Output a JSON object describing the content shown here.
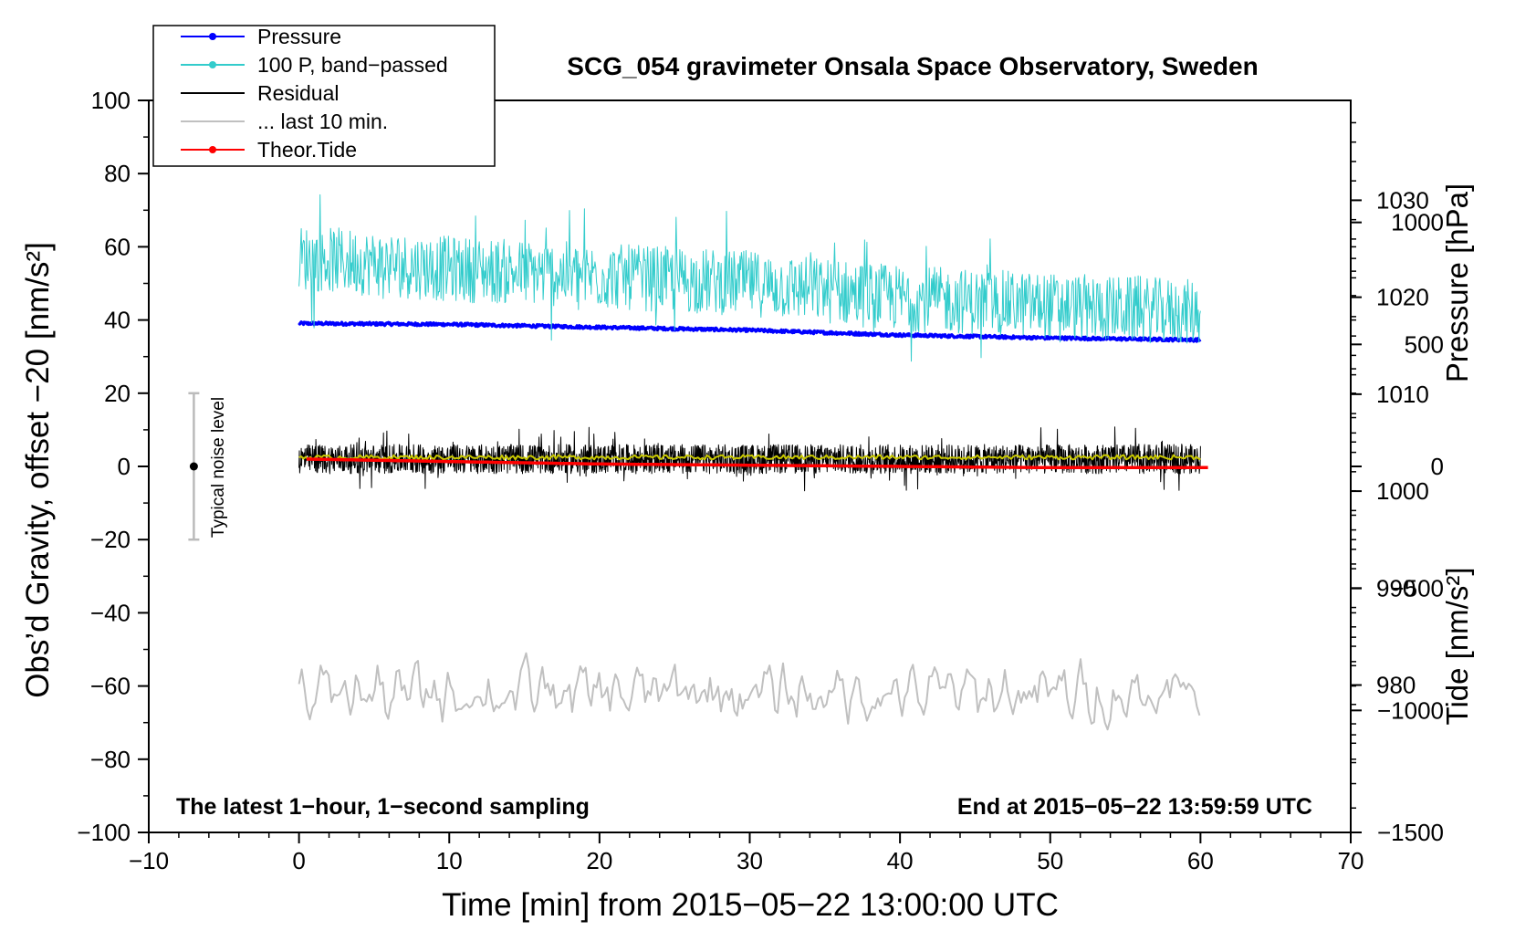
{
  "chart_data": {
    "type": "line",
    "title": "SCG_054 gravimeter Onsala Space Observatory, Sweden",
    "xlabel": "Time [min] from 2015−05−22 13:00:00 UTC",
    "ylabel_left": "Obs’d Gravity, offset −20 [nm/s²]",
    "ylabel_right_top": "Pressure [hPa]",
    "ylabel_right_bottom": "Tide [nm/s²]",
    "xlim": [
      -10,
      70
    ],
    "ylim": [
      -100,
      100
    ],
    "x_ticks": [
      "−10",
      "0",
      "10",
      "20",
      "30",
      "40",
      "50",
      "60",
      "70"
    ],
    "y_ticks": [
      "100",
      "80",
      "60",
      "40",
      "20",
      "0",
      "−20",
      "−40",
      "−60",
      "−80",
      "−100"
    ],
    "pressure_axis": {
      "range_hPa": [
        964.8,
        1040.3
      ],
      "ticks": [
        "1030",
        "1020",
        "1010",
        "1000",
        "990",
        "980"
      ]
    },
    "tide_axis": {
      "range": [
        -1500,
        1500
      ],
      "ticks": [
        "1000",
        "500",
        "0",
        "−500",
        "−1000",
        "−1500"
      ]
    },
    "annotation_left": "The latest 1−hour, 1−second sampling",
    "annotation_right": "End at 2015−05−22 13:59:59 UTC",
    "noise_bar": {
      "label": "Typical noise level",
      "x": -7,
      "center": 0,
      "low": -20,
      "high": 20
    },
    "legend": [
      {
        "label": "Pressure",
        "color": "#0000ff",
        "marker": true
      },
      {
        "label": "100 P, band−passed",
        "color": "#33cccc",
        "marker": true
      },
      {
        "label": "Residual",
        "color": "#000000",
        "marker": false
      },
      {
        "label": "... last 10 min.",
        "color": "#c0c0c0",
        "marker": false
      },
      {
        "label": "Theor.Tide",
        "color": "#ff0000",
        "marker": true
      }
    ],
    "series": [
      {
        "name": "Pressure",
        "axis": "pressure_hPa",
        "color": "#0000ff",
        "x": [
          0,
          10,
          20,
          30,
          40,
          50,
          60
        ],
        "values": [
          1017.3,
          1017.2,
          1016.9,
          1016.6,
          1016.1,
          1015.8,
          1015.6
        ]
      },
      {
        "name": "100 P, band-passed",
        "axis": "left",
        "color": "#33cccc",
        "x": [
          0,
          10,
          20,
          30,
          40,
          50,
          60
        ],
        "values": [
          57,
          54,
          52,
          50,
          46,
          44,
          42
        ],
        "noise_amplitude": 9
      },
      {
        "name": "Residual",
        "axis": "left",
        "color": "#000000",
        "x": [
          0,
          10,
          20,
          30,
          40,
          50,
          60
        ],
        "values": [
          2,
          2,
          2,
          2,
          2,
          2,
          2
        ],
        "noise_amplitude": 4
      },
      {
        "name": "... last 10 min. (smoothed residual)",
        "axis": "left",
        "color": "#c8c800",
        "x": [
          0,
          60
        ],
        "values": [
          2.5,
          2.5
        ]
      },
      {
        "name": "Theor.Tide",
        "axis": "tide",
        "color": "#ff0000",
        "x": [
          0.5,
          10,
          20,
          30,
          40,
          50,
          60.5
        ],
        "values": [
          30,
          20,
          10,
          5,
          0,
          -5,
          -5
        ]
      },
      {
        "name": "... last 10 min. (gray trace)",
        "axis": "left",
        "color": "#c0c0c0",
        "x": [
          0,
          60
        ],
        "values": [
          -62,
          -62
        ],
        "noise_amplitude": 5
      }
    ]
  }
}
